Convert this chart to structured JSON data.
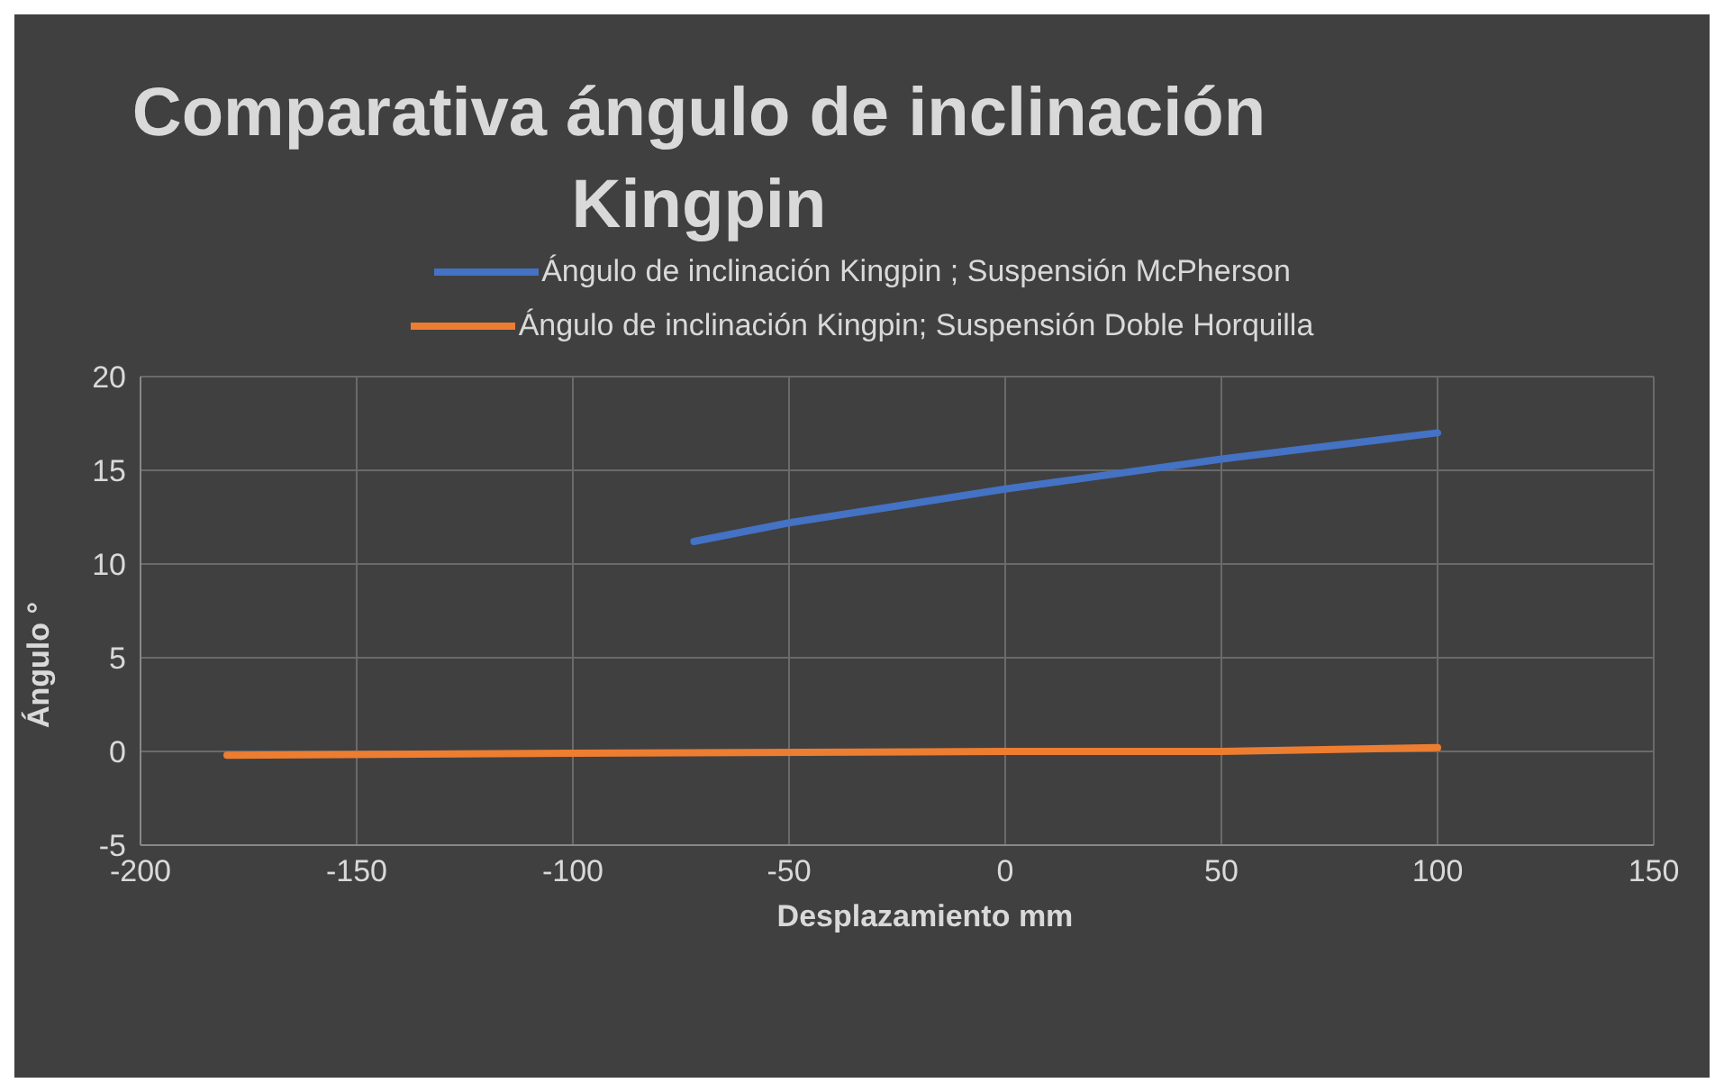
{
  "chart_data": {
    "type": "line",
    "title": "Comparativa ángulo de inclinación Kingpin",
    "xlabel": "Desplazamiento mm",
    "ylabel": "Ángulo °",
    "series": [
      {
        "name": "Ángulo de inclinación Kingpin ; Suspensión McPherson",
        "color": "#4472c4",
        "x": [
          -72,
          -50,
          0,
          50,
          100
        ],
        "values": [
          11.2,
          12.2,
          14.0,
          15.6,
          17.0
        ]
      },
      {
        "name": "Ángulo de inclinación Kingpin; Suspensión Doble Horquilla",
        "color": "#ed7d31",
        "x": [
          -180,
          -100,
          0,
          50,
          100
        ],
        "values": [
          -0.2,
          -0.1,
          0,
          0,
          0.2
        ]
      }
    ],
    "xlim": [
      -200,
      150
    ],
    "xticks": [
      -200,
      -150,
      -100,
      -50,
      0,
      50,
      100,
      150
    ],
    "ylim": [
      -5,
      20
    ],
    "yticks": [
      -5,
      0,
      5,
      10,
      15,
      20
    ],
    "grid": true,
    "legend": "top",
    "marker": "none",
    "line_style": "solid"
  }
}
